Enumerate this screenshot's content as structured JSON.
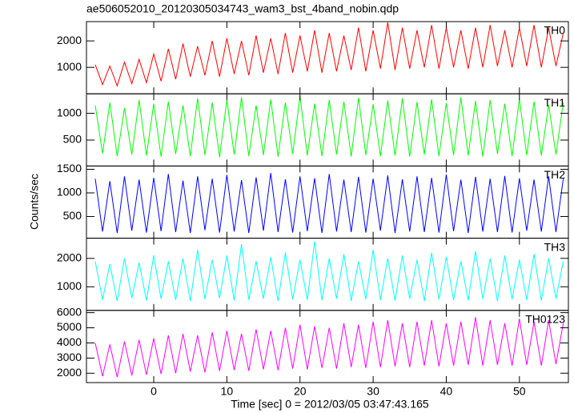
{
  "title": "ae506052010_20120305034743_wam3_bst_4band_nobin.qdp",
  "ylabel": "Counts/sec",
  "xlabel": "Time [sec] 0 = 2012/03/05 03:47:43.165",
  "chart_data": [
    {
      "type": "line",
      "xlim": [
        -9.2,
        56.7
      ],
      "xticks": [
        0,
        10,
        20,
        30,
        40,
        50
      ],
      "ylim": [
        0,
        2730
      ],
      "yticks": [
        1000,
        2000
      ],
      "x": [
        -8,
        -7,
        -6,
        -5,
        -4,
        -3,
        -2,
        -1,
        0,
        1,
        2,
        3,
        4,
        5,
        6,
        7,
        8,
        9,
        10,
        11,
        12,
        13,
        14,
        15,
        16,
        17,
        18,
        19,
        20,
        21,
        22,
        23,
        24,
        25,
        26,
        27,
        28,
        29,
        30,
        31,
        32,
        33,
        34,
        35,
        36,
        37,
        38,
        39,
        40,
        41,
        42,
        43,
        44,
        45,
        46,
        47,
        48,
        49,
        50,
        51,
        52,
        53,
        54,
        55,
        56
      ],
      "series": [
        {
          "name": "TH0",
          "color": "#ff0000",
          "values": [
            1100,
            350,
            1050,
            300,
            1200,
            380,
            1300,
            420,
            1500,
            480,
            1700,
            550,
            1900,
            650,
            1800,
            700,
            2000,
            650,
            2100,
            750,
            2000,
            700,
            2200,
            800,
            2100,
            750,
            2300,
            800,
            2200,
            850,
            2400,
            800,
            2300,
            850,
            2200,
            900,
            2500,
            850,
            2400,
            950,
            2700,
            900,
            2500,
            950,
            2400,
            1000,
            2600,
            950,
            2500,
            1000,
            2400,
            950,
            2500,
            1000,
            2600,
            1050,
            2400,
            1000,
            2500,
            1050,
            2600,
            1000,
            2500,
            1050,
            2300
          ]
        }
      ]
    },
    {
      "type": "line",
      "xlim": [
        -9.2,
        56.7
      ],
      "xticks": [
        0,
        10,
        20,
        30,
        40,
        50
      ],
      "ylim": [
        15,
        1365
      ],
      "yticks": [
        500,
        1000
      ],
      "x": [
        -8,
        -7,
        -6,
        -5,
        -4,
        -3,
        -2,
        -1,
        0,
        1,
        2,
        3,
        4,
        5,
        6,
        7,
        8,
        9,
        10,
        11,
        12,
        13,
        14,
        15,
        16,
        17,
        18,
        19,
        20,
        21,
        22,
        23,
        24,
        25,
        26,
        27,
        28,
        29,
        30,
        31,
        32,
        33,
        34,
        35,
        36,
        37,
        38,
        39,
        40,
        41,
        42,
        43,
        44,
        45,
        46,
        47,
        48,
        49,
        50,
        51,
        52,
        53,
        54,
        55,
        56
      ],
      "series": [
        {
          "name": "TH1",
          "color": "#00ff00",
          "values": [
            1150,
            250,
            1200,
            200,
            1100,
            230,
            1250,
            210,
            1180,
            190,
            1220,
            240,
            1150,
            200,
            1280,
            220,
            1200,
            180,
            1250,
            230,
            1300,
            200,
            1150,
            220,
            1260,
            190,
            1200,
            240,
            1320,
            210,
            1180,
            200,
            1250,
            230,
            1220,
            190,
            1290,
            220,
            1170,
            200,
            1240,
            210,
            1280,
            190,
            1210,
            230,
            1260,
            200,
            1190,
            220,
            1300,
            210,
            1230,
            190,
            1250,
            240,
            1180,
            200,
            1270,
            220,
            1220,
            210,
            1160,
            230,
            1200
          ]
        }
      ]
    },
    {
      "type": "line",
      "xlim": [
        -9.2,
        56.7
      ],
      "xticks": [
        0,
        10,
        20,
        30,
        40,
        50
      ],
      "ylim": [
        40,
        1570
      ],
      "yticks": [
        500,
        1000,
        1500
      ],
      "x": [
        -8,
        -7,
        -6,
        -5,
        -4,
        -3,
        -2,
        -1,
        0,
        1,
        2,
        3,
        4,
        5,
        6,
        7,
        8,
        9,
        10,
        11,
        12,
        13,
        14,
        15,
        16,
        17,
        18,
        19,
        20,
        21,
        22,
        23,
        24,
        25,
        26,
        27,
        28,
        29,
        30,
        31,
        32,
        33,
        34,
        35,
        36,
        37,
        38,
        39,
        40,
        41,
        42,
        43,
        44,
        45,
        46,
        47,
        48,
        49,
        50,
        51,
        52,
        53,
        54,
        55,
        56
      ],
      "series": [
        {
          "name": "TH2",
          "color": "#0000ff",
          "values": [
            1300,
            180,
            1250,
            150,
            1350,
            200,
            1280,
            160,
            1320,
            190,
            1400,
            170,
            1260,
            150,
            1350,
            210,
            1300,
            160,
            1380,
            180,
            1270,
            150,
            1330,
            200,
            1420,
            170,
            1290,
            160,
            1350,
            190,
            1310,
            150,
            1400,
            180,
            1280,
            170,
            1340,
            160,
            1300,
            200,
            1370,
            150,
            1290,
            180,
            1350,
            170,
            1320,
            160,
            1390,
            190,
            1280,
            150,
            1340,
            180,
            1300,
            170,
            1360,
            160,
            1310,
            200,
            1280,
            180,
            1350,
            170,
            1300
          ]
        }
      ]
    },
    {
      "type": "line",
      "xlim": [
        -9.2,
        56.7
      ],
      "xticks": [
        0,
        10,
        20,
        30,
        40,
        50
      ],
      "ylim": [
        170,
        2710
      ],
      "yticks": [
        1000,
        2000
      ],
      "x": [
        -8,
        -7,
        -6,
        -5,
        -4,
        -3,
        -2,
        -1,
        0,
        1,
        2,
        3,
        4,
        5,
        6,
        7,
        8,
        9,
        10,
        11,
        12,
        13,
        14,
        15,
        16,
        17,
        18,
        19,
        20,
        21,
        22,
        23,
        24,
        25,
        26,
        27,
        28,
        29,
        30,
        31,
        32,
        33,
        34,
        35,
        36,
        37,
        38,
        39,
        40,
        41,
        42,
        43,
        44,
        45,
        46,
        47,
        48,
        49,
        50,
        51,
        52,
        53,
        54,
        55,
        56
      ],
      "series": [
        {
          "name": "TH3",
          "color": "#00ffff",
          "values": [
            1900,
            550,
            1800,
            500,
            2000,
            600,
            1850,
            520,
            2100,
            580,
            1900,
            540,
            2000,
            500,
            2300,
            560,
            1950,
            600,
            2100,
            520,
            2500,
            540,
            1900,
            580,
            2050,
            500,
            2200,
            560,
            1950,
            540,
            2600,
            520,
            2000,
            580,
            2150,
            500,
            1900,
            560,
            2300,
            540,
            2000,
            520,
            2100,
            580,
            1950,
            500,
            2200,
            560,
            2050,
            540,
            1900,
            520,
            2250,
            580,
            2000,
            500,
            2100,
            560,
            1950,
            540,
            2150,
            520,
            2000,
            580,
            1900
          ]
        }
      ]
    },
    {
      "type": "line",
      "xlim": [
        -9.2,
        56.7
      ],
      "xticks": [
        0,
        10,
        20,
        30,
        40,
        50
      ],
      "ylim": [
        1380,
        6150
      ],
      "yticks": [
        2000,
        3000,
        4000,
        5000,
        6000
      ],
      "x": [
        -8,
        -7,
        -6,
        -5,
        -4,
        -3,
        -2,
        -1,
        0,
        1,
        2,
        3,
        4,
        5,
        6,
        7,
        8,
        9,
        10,
        11,
        12,
        13,
        14,
        15,
        16,
        17,
        18,
        19,
        20,
        21,
        22,
        23,
        24,
        25,
        26,
        27,
        28,
        29,
        30,
        31,
        32,
        33,
        34,
        35,
        36,
        37,
        38,
        39,
        40,
        41,
        42,
        43,
        44,
        45,
        46,
        47,
        48,
        49,
        50,
        51,
        52,
        53,
        54,
        55,
        56
      ],
      "series": [
        {
          "name": "TH0123",
          "color": "#ff00ff",
          "values": [
            4000,
            1800,
            3900,
            1750,
            4100,
            1850,
            4200,
            1900,
            4300,
            1950,
            4500,
            2000,
            4600,
            2100,
            4500,
            2050,
            4700,
            2150,
            4800,
            2200,
            4600,
            2150,
            4900,
            2250,
            4800,
            2200,
            5000,
            2300,
            5200,
            2250,
            5100,
            2350,
            5000,
            2300,
            5300,
            2400,
            5200,
            2350,
            5400,
            2400,
            5500,
            2450,
            5300,
            2400,
            5400,
            2500,
            5500,
            2450,
            5300,
            2500,
            5400,
            2550,
            5700,
            2500,
            5500,
            2550,
            5300,
            2500,
            5600,
            2550,
            5400,
            2500,
            5500,
            2600,
            5300
          ]
        }
      ]
    }
  ]
}
